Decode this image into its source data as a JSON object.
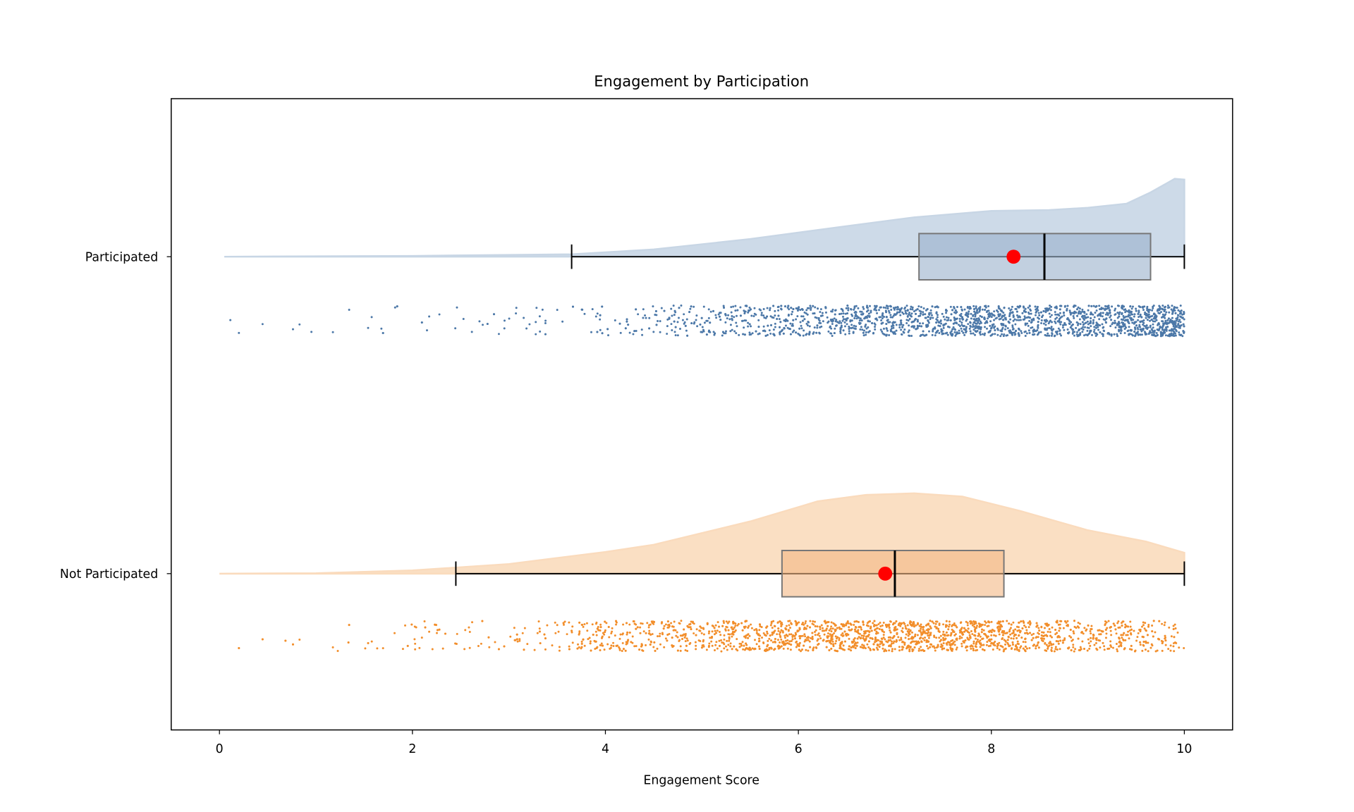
{
  "chart_data": {
    "type": "raincloud",
    "title": "Engagement by Participation",
    "xlabel": "Engagement Score",
    "ylabel": "",
    "xlim": [
      -0.5,
      10.5
    ],
    "xticks": [
      0,
      2,
      4,
      6,
      8,
      10
    ],
    "xtick_labels": [
      "0",
      "2",
      "4",
      "6",
      "8",
      "10"
    ],
    "grid": false,
    "groups": [
      {
        "name": "Participated",
        "color": "#4c78a8",
        "violin_color": "#c8d6e5",
        "box_color": "#9ab0cb",
        "box": {
          "whisker_low": 3.65,
          "q1": 7.25,
          "median": 8.55,
          "q3": 9.65,
          "whisker_high": 10.0,
          "mean": 8.23
        },
        "density": [
          [
            0.05,
            0
          ],
          [
            2,
            0.01
          ],
          [
            3.65,
            0.03
          ],
          [
            4.5,
            0.09
          ],
          [
            5.5,
            0.22
          ],
          [
            6.5,
            0.38
          ],
          [
            7.2,
            0.49
          ],
          [
            8,
            0.57
          ],
          [
            8.6,
            0.58
          ],
          [
            9.0,
            0.61
          ],
          [
            9.4,
            0.66
          ],
          [
            9.65,
            0.8
          ],
          [
            9.9,
            0.97
          ],
          [
            10,
            0.96
          ]
        ],
        "n_points": 2500
      },
      {
        "name": "Not Participated",
        "color": "#f28e2b",
        "violin_color": "#fadbbd",
        "box_color": "#f4b884",
        "box": {
          "whisker_low": 2.45,
          "q1": 5.83,
          "median": 7.0,
          "q3": 8.13,
          "whisker_high": 10.0,
          "mean": 6.9
        },
        "density": [
          [
            0,
            0
          ],
          [
            1,
            0.005
          ],
          [
            2,
            0.04
          ],
          [
            3,
            0.12
          ],
          [
            4,
            0.27
          ],
          [
            4.5,
            0.36
          ],
          [
            5.5,
            0.65
          ],
          [
            6.2,
            0.9
          ],
          [
            6.7,
            0.98
          ],
          [
            7.2,
            1.0
          ],
          [
            7.7,
            0.96
          ],
          [
            8.3,
            0.78
          ],
          [
            9,
            0.54
          ],
          [
            9.6,
            0.4
          ],
          [
            10,
            0.26
          ]
        ],
        "n_points": 2500
      }
    ],
    "mean_marker_color": "#ff0000"
  }
}
